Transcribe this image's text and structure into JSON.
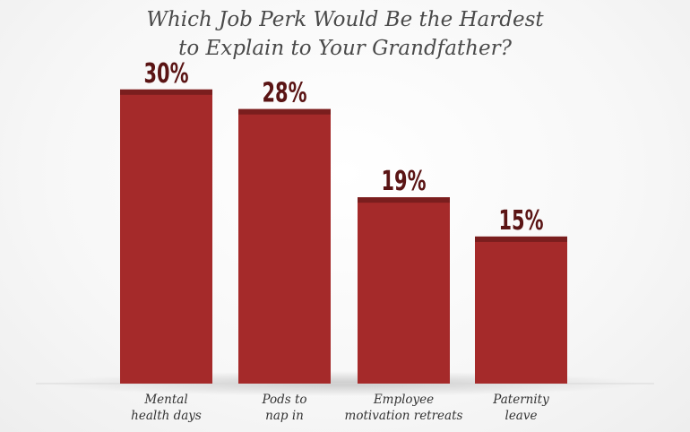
{
  "chart_data": {
    "type": "bar",
    "title_lines": [
      "Which Job Perk Would Be the Hardest",
      "to Explain to Your Grandfather?"
    ],
    "categories": [
      [
        "Mental",
        "health days"
      ],
      [
        "Pods to",
        "nap in"
      ],
      [
        "Employee",
        "motivation retreats"
      ],
      [
        "Paternity",
        "leave"
      ]
    ],
    "values": [
      30,
      28,
      19,
      15
    ],
    "value_labels": [
      "30%",
      "28%",
      "19%",
      "15%"
    ],
    "ylim": [
      0,
      33
    ],
    "colors": {
      "bar": "#a52a2a",
      "bar_cap": "#7a1e1e",
      "value_text": "#5a1414"
    },
    "grid": false,
    "legend": "none"
  }
}
